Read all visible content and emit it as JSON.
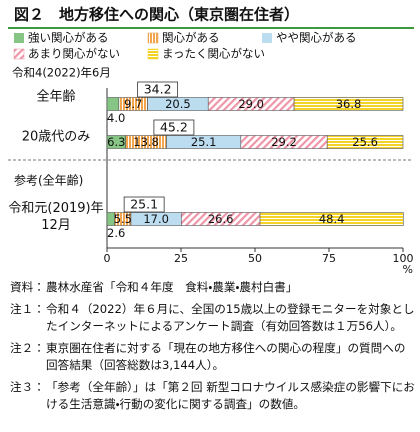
{
  "chart_data": {
    "type": "stacked-bar-horizontal",
    "title": "図２　地方移住への関心（東京圏在住者）",
    "subtitle": "令和4(2022)年6月",
    "section_label": "参考(全年齢)",
    "categories": [
      "全年齢",
      "20歳代のみ",
      "令和元(2019)年12月"
    ],
    "series": [
      {
        "name": "強い関心がある",
        "color": "#86c584",
        "pattern": "solid",
        "values": [
          4.0,
          6.3,
          2.6
        ],
        "value_labels": [
          "4.0",
          "6.3",
          "2.6"
        ]
      },
      {
        "name": "関心がある",
        "color": "#f3a54e",
        "pattern": "vertical",
        "values": [
          9.7,
          13.8,
          5.5
        ],
        "value_labels": [
          "9.7",
          "13.8",
          "5.5"
        ]
      },
      {
        "name": "やや関心がある",
        "color": "#bcdcf0",
        "pattern": "solid",
        "values": [
          20.5,
          25.1,
          17.0
        ],
        "value_labels": [
          "20.5",
          "25.1",
          "17.0"
        ]
      },
      {
        "name": "あまり関心がない",
        "color": "#ee95a8",
        "pattern": "diagonal",
        "values": [
          29.0,
          29.2,
          26.6
        ],
        "value_labels": [
          "29.0",
          "29.2",
          "26.6"
        ]
      },
      {
        "name": "まったく関心がない",
        "color": "#f4d327",
        "pattern": "horizontal",
        "values": [
          36.8,
          25.6,
          48.4
        ],
        "value_labels": [
          "36.8",
          "25.6",
          "48.4"
        ]
      }
    ],
    "interest_totals": [
      34.2,
      45.2,
      25.1
    ],
    "xlim": [
      0,
      100
    ],
    "xticks": [
      0,
      25,
      50,
      75,
      100
    ],
    "xlabel": "%",
    "grid": false
  },
  "notes": [
    {
      "label": "資料：",
      "text": "農林水産省「令和４年度　食料・農業・農村白書」"
    },
    {
      "label": "注１：",
      "text": "令和４（2022）年６月に、全国の15歳以上の登録モニターを対象としたインターネットによるアンケート調査（有効回答数は１万56人）。"
    },
    {
      "label": "注２：",
      "text": "東京圏在住者に対する「現在の地方移住への関心の程度」の質問への回答結果（回答総数は3,144人）。"
    },
    {
      "label": "注３：",
      "text": "「参考（全年齢）」は「第２回 新型コロナウイルス感染症の影響下における生活意識・行動の変化に関する調査」の数値。"
    }
  ]
}
